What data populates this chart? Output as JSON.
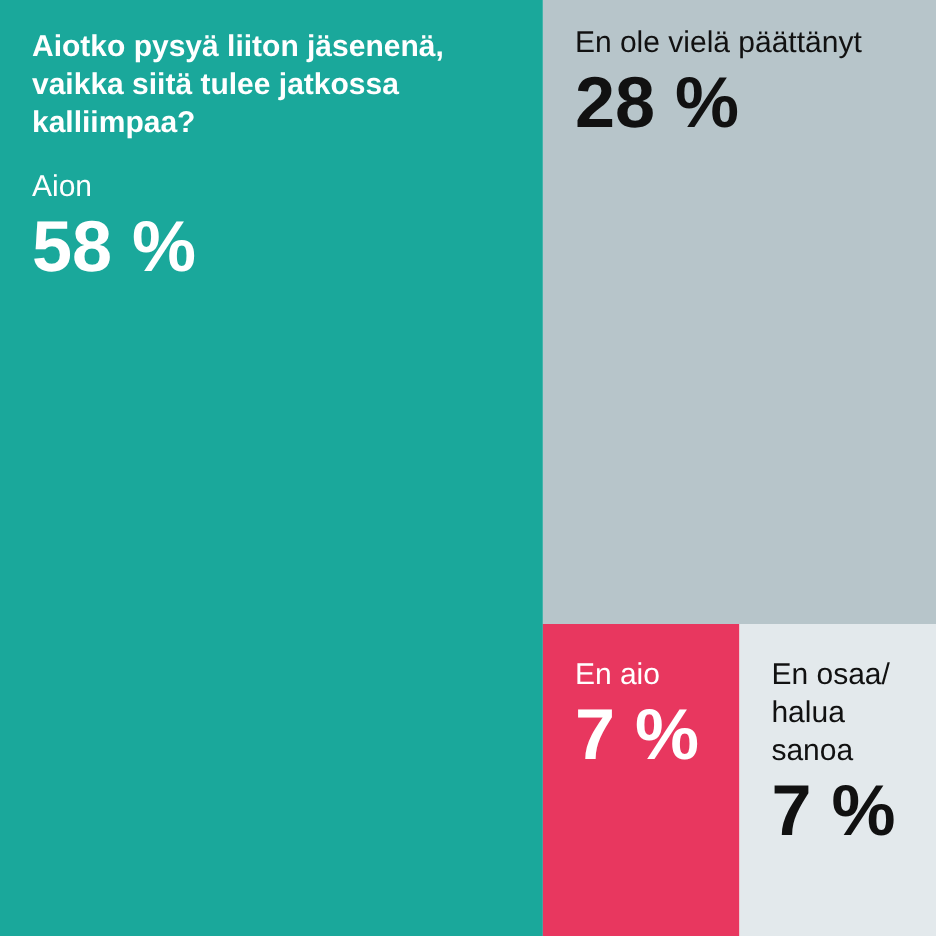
{
  "chart_data": {
    "type": "other",
    "title": "Aiotko pysyä liiton jäsenenä, vaikka siitä tulee jatkossa kalliimpaa?",
    "categories": [
      "Aion",
      "En ole vielä päättänyt",
      "En aio",
      "En osaa/ halua sanoa"
    ],
    "values": [
      58,
      28,
      7,
      7
    ],
    "value_labels": [
      "58 %",
      "28 %",
      "7 %",
      "7 %"
    ],
    "colors": [
      "#1aa89b",
      "#b7c5ca",
      "#e8375f",
      "#e3e9ec"
    ]
  }
}
